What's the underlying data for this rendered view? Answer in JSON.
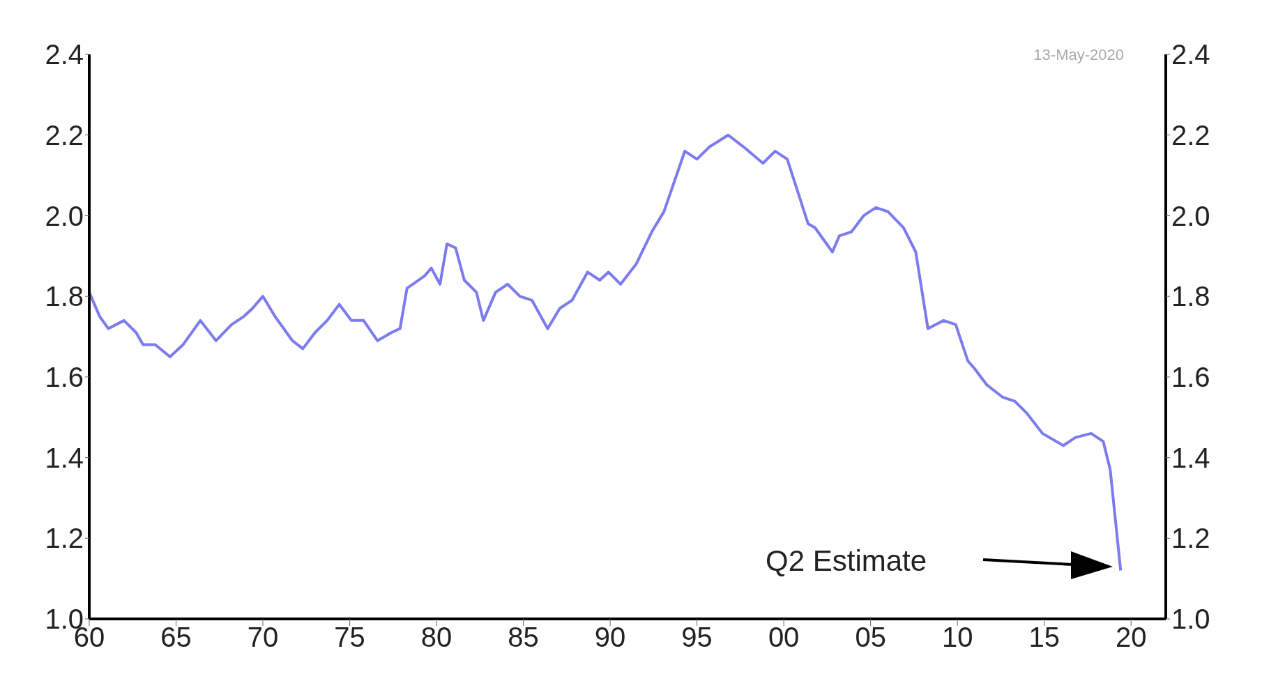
{
  "chart_data": {
    "type": "line",
    "x": [
      1960.0,
      1960.6,
      1961.1,
      1962.0,
      1962.7,
      1963.1,
      1963.8,
      1964.65,
      1965.4,
      1966.4,
      1967.3,
      1968.2,
      1968.9,
      1969.4,
      1970.0,
      1970.7,
      1971.7,
      1972.3,
      1973.0,
      1973.7,
      1974.4,
      1975.1,
      1975.8,
      1976.6,
      1977.4,
      1977.9,
      1978.3,
      1979.3,
      1979.7,
      1980.2,
      1980.6,
      1981.1,
      1981.6,
      1982.3,
      1982.7,
      1983.4,
      1984.1,
      1984.8,
      1985.5,
      1986.4,
      1987.1,
      1987.8,
      1988.7,
      1989.4,
      1989.9,
      1990.6,
      1991.5,
      1992.4,
      1993.1,
      1994.3,
      1995.0,
      1995.7,
      1996.8,
      1997.7,
      1998.8,
      1999.5,
      2000.2,
      2001.4,
      2001.8,
      2002.8,
      2003.2,
      2003.9,
      2004.6,
      2005.3,
      2006.0,
      2006.9,
      2007.6,
      2008.3,
      2009.2,
      2009.9,
      2010.6,
      2011.0,
      2011.7,
      2012.6,
      2013.3,
      2014.0,
      2014.9,
      2016.1,
      2016.8,
      2017.7,
      2018.4,
      2018.8,
      2019.4
    ],
    "series": [
      {
        "color": "#7b7bef",
        "values": [
          1.81,
          1.75,
          1.72,
          1.74,
          1.71,
          1.68,
          1.68,
          1.65,
          1.68,
          1.74,
          1.69,
          1.73,
          1.75,
          1.77,
          1.8,
          1.75,
          1.69,
          1.67,
          1.71,
          1.74,
          1.78,
          1.74,
          1.74,
          1.69,
          1.71,
          1.72,
          1.82,
          1.85,
          1.87,
          1.83,
          1.93,
          1.92,
          1.84,
          1.81,
          1.74,
          1.81,
          1.83,
          1.8,
          1.79,
          1.72,
          1.77,
          1.79,
          1.86,
          1.84,
          1.86,
          1.83,
          1.88,
          1.96,
          2.01,
          2.16,
          2.14,
          2.17,
          2.2,
          2.17,
          2.13,
          2.16,
          2.14,
          1.98,
          1.97,
          1.91,
          1.95,
          1.96,
          2.0,
          2.02,
          2.01,
          1.97,
          1.91,
          1.72,
          1.74,
          1.73,
          1.64,
          1.62,
          1.58,
          1.55,
          1.54,
          1.51,
          1.46,
          1.43,
          1.45,
          1.46,
          1.44,
          1.37,
          1.12
        ]
      }
    ],
    "xlim": [
      1960,
      2022
    ],
    "xticks": [
      {
        "value": 1960,
        "label": "60"
      },
      {
        "value": 1965,
        "label": "65"
      },
      {
        "value": 1970,
        "label": "70"
      },
      {
        "value": 1975,
        "label": "75"
      },
      {
        "value": 1980,
        "label": "80"
      },
      {
        "value": 1985,
        "label": "85"
      },
      {
        "value": 1990,
        "label": "90"
      },
      {
        "value": 1995,
        "label": "95"
      },
      {
        "value": 2000,
        "label": "00"
      },
      {
        "value": 2005,
        "label": "05"
      },
      {
        "value": 2010,
        "label": "10"
      },
      {
        "value": 2015,
        "label": "15"
      },
      {
        "value": 2020,
        "label": "20"
      }
    ],
    "ylim": [
      1.0,
      2.4
    ],
    "yticks": [
      {
        "value": 1.0,
        "label": "1.0"
      },
      {
        "value": 1.2,
        "label": "1.2"
      },
      {
        "value": 1.4,
        "label": "1.4"
      },
      {
        "value": 1.6,
        "label": "1.6"
      },
      {
        "value": 1.8,
        "label": "1.8"
      },
      {
        "value": 2.0,
        "label": "2.0"
      },
      {
        "value": 2.2,
        "label": "2.2"
      },
      {
        "value": 2.4,
        "label": "2.4"
      }
    ],
    "y2lim": [
      1.0,
      2.4
    ],
    "y2ticks": [
      {
        "value": 1.0,
        "label": "1.0"
      },
      {
        "value": 1.2,
        "label": "1.2"
      },
      {
        "value": 1.4,
        "label": "1.4"
      },
      {
        "value": 1.6,
        "label": "1.6"
      },
      {
        "value": 1.8,
        "label": "1.8"
      },
      {
        "value": 2.0,
        "label": "2.0"
      },
      {
        "value": 2.2,
        "label": "2.2"
      },
      {
        "value": 2.4,
        "label": "2.4"
      }
    ],
    "grid": false,
    "legend": false,
    "marker": "none",
    "line_style": "solid",
    "annotations": [
      "13-May-2020",
      "Q2 Estimate"
    ]
  }
}
